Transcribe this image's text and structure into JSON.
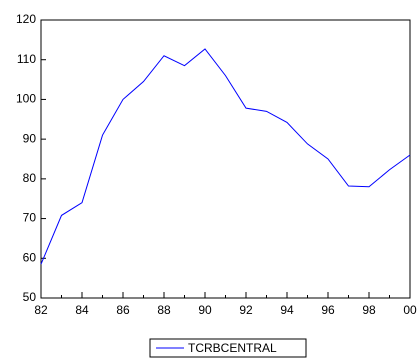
{
  "chart_data": {
    "type": "line",
    "categories": [
      "82",
      null,
      "84",
      null,
      "86",
      null,
      "88",
      null,
      "90",
      null,
      "92",
      null,
      "94",
      null,
      "96",
      null,
      "98",
      null,
      "00"
    ],
    "series": [
      {
        "name": "TCRBCENTRAL",
        "color": "#0000ff",
        "values": [
          58.5,
          70.8,
          74,
          91,
          100,
          104.5,
          111,
          108.5,
          112.7,
          106,
          97.8,
          97,
          94.2,
          88.8,
          85,
          78.2,
          78,
          82.3,
          86
        ]
      }
    ],
    "ylim": [
      50,
      120
    ],
    "yticks": [
      50,
      60,
      70,
      80,
      90,
      100,
      110,
      120
    ],
    "legend": "bottom"
  }
}
